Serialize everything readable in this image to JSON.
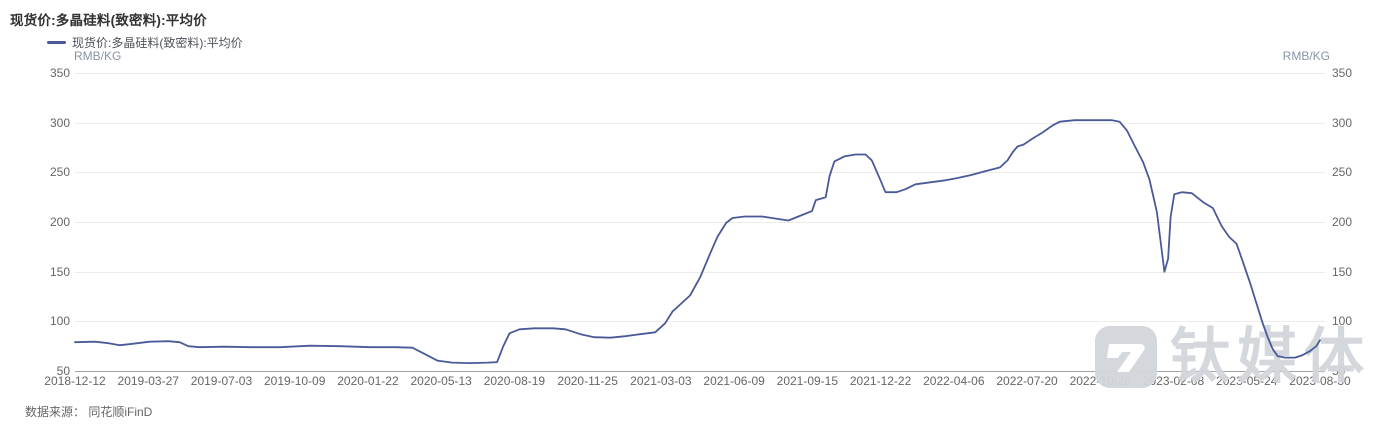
{
  "title": "现货价:多晶硅料(致密料):平均价",
  "legend": {
    "series_label": "现货价:多晶硅料(致密料):平均价"
  },
  "axis_unit_left": "RMB/KG",
  "axis_unit_right": "RMB/KG",
  "source_note": "数据来源： 同花顺iFinD",
  "watermark": {
    "text": "钛媒体"
  },
  "colors": {
    "line": "#4a5a99",
    "grid": "#ececec",
    "axis_line": "#a6a6a6",
    "label": "#666666",
    "unit": "#8a93a6",
    "title": "#333333",
    "watermark": "#d2d5da"
  },
  "chart_data": {
    "type": "line",
    "title": "现货价:多晶硅料(致密料):平均价",
    "ylabel": "RMB/KG",
    "ylim": [
      50,
      350
    ],
    "y_ticks": [
      350,
      300,
      250,
      200,
      150,
      100,
      50
    ],
    "x_range": [
      "2018-12-12",
      "2023-08-30"
    ],
    "x_tick_labels": [
      "2018-12-12",
      "2019-03-27",
      "2019-07-03",
      "2019-10-09",
      "2020-01-22",
      "2020-05-13",
      "2020-08-19",
      "2020-11-25",
      "2021-03-03",
      "2021-06-09",
      "2021-09-15",
      "2021-12-22",
      "2022-04-06",
      "2022-07-20",
      "2022-10-26",
      "2023-02-08",
      "2023-05-24",
      "2023-08-30"
    ],
    "grid": true,
    "legend_position": "top-left",
    "series": [
      {
        "name": "现货价:多晶硅料(致密料):平均价",
        "unit": "RMB/KG",
        "points_format": "[fraction_of_x_axis, price_rmb_per_kg]",
        "points": [
          [
            0.0,
            79
          ],
          [
            0.016,
            79.5
          ],
          [
            0.027,
            78
          ],
          [
            0.036,
            76
          ],
          [
            0.047,
            77.5
          ],
          [
            0.06,
            79.5
          ],
          [
            0.075,
            80
          ],
          [
            0.084,
            79
          ],
          [
            0.091,
            75
          ],
          [
            0.1,
            74
          ],
          [
            0.12,
            74.5
          ],
          [
            0.141,
            74
          ],
          [
            0.165,
            74
          ],
          [
            0.189,
            75.5
          ],
          [
            0.213,
            75
          ],
          [
            0.237,
            74
          ],
          [
            0.257,
            74
          ],
          [
            0.271,
            73.5
          ],
          [
            0.281,
            67
          ],
          [
            0.291,
            60.5
          ],
          [
            0.303,
            58.5
          ],
          [
            0.317,
            58
          ],
          [
            0.332,
            58.5
          ],
          [
            0.339,
            59
          ],
          [
            0.344,
            75
          ],
          [
            0.349,
            88
          ],
          [
            0.357,
            92
          ],
          [
            0.369,
            93
          ],
          [
            0.384,
            93
          ],
          [
            0.394,
            92
          ],
          [
            0.406,
            87
          ],
          [
            0.417,
            84
          ],
          [
            0.43,
            83.5
          ],
          [
            0.442,
            85
          ],
          [
            0.454,
            87
          ],
          [
            0.466,
            89
          ],
          [
            0.474,
            98
          ],
          [
            0.48,
            110
          ],
          [
            0.487,
            118
          ],
          [
            0.494,
            126
          ],
          [
            0.502,
            144
          ],
          [
            0.51,
            168
          ],
          [
            0.516,
            185
          ],
          [
            0.523,
            199
          ],
          [
            0.528,
            204
          ],
          [
            0.538,
            205.5
          ],
          [
            0.552,
            205.5
          ],
          [
            0.565,
            203
          ],
          [
            0.573,
            201.5
          ],
          [
            0.582,
            206
          ],
          [
            0.592,
            211
          ],
          [
            0.595,
            222
          ],
          [
            0.603,
            225
          ],
          [
            0.606,
            246
          ],
          [
            0.61,
            261
          ],
          [
            0.618,
            266
          ],
          [
            0.627,
            268
          ],
          [
            0.635,
            268
          ],
          [
            0.64,
            262
          ],
          [
            0.647,
            242
          ],
          [
            0.651,
            230
          ],
          [
            0.66,
            230
          ],
          [
            0.667,
            233
          ],
          [
            0.675,
            238
          ],
          [
            0.687,
            240
          ],
          [
            0.699,
            242
          ],
          [
            0.708,
            244
          ],
          [
            0.719,
            247
          ],
          [
            0.731,
            251
          ],
          [
            0.743,
            255
          ],
          [
            0.749,
            262
          ],
          [
            0.753,
            270
          ],
          [
            0.757,
            276
          ],
          [
            0.762,
            278
          ],
          [
            0.769,
            284
          ],
          [
            0.777,
            290
          ],
          [
            0.785,
            297
          ],
          [
            0.791,
            301
          ],
          [
            0.803,
            302.5
          ],
          [
            0.819,
            302.5
          ],
          [
            0.833,
            302.5
          ],
          [
            0.839,
            301
          ],
          [
            0.845,
            292
          ],
          [
            0.851,
            277
          ],
          [
            0.858,
            260
          ],
          [
            0.863,
            243
          ],
          [
            0.869,
            210
          ],
          [
            0.873,
            170
          ],
          [
            0.875,
            150
          ],
          [
            0.878,
            163
          ],
          [
            0.88,
            205
          ],
          [
            0.883,
            228
          ],
          [
            0.889,
            230
          ],
          [
            0.897,
            229
          ],
          [
            0.906,
            220
          ],
          [
            0.914,
            214
          ],
          [
            0.921,
            196
          ],
          [
            0.927,
            185
          ],
          [
            0.933,
            178
          ],
          [
            0.938,
            160
          ],
          [
            0.944,
            138
          ],
          [
            0.949,
            118
          ],
          [
            0.954,
            98
          ],
          [
            0.958,
            84
          ],
          [
            0.962,
            72
          ],
          [
            0.966,
            65
          ],
          [
            0.972,
            63.5
          ],
          [
            0.98,
            63.5
          ],
          [
            0.986,
            66
          ],
          [
            0.992,
            70
          ],
          [
            0.997,
            75
          ],
          [
            1.0,
            81
          ]
        ]
      }
    ]
  }
}
